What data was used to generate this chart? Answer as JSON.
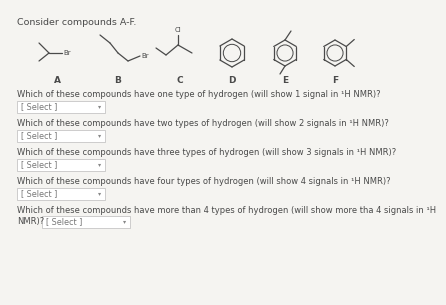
{
  "title": "Consider compounds A-F.",
  "bg_color": "#f5f4f1",
  "text_color": "#4a4a4a",
  "struct_color": "#4a4a4a",
  "title_fontsize": 6.8,
  "label_fontsize": 6.5,
  "question_fontsize": 6.0,
  "select_fontsize": 5.8,
  "questions": [
    "Which of these compounds have one type of hydrogen (will show 1 signal in ¹H NMR)?",
    "Which of these compounds have two types of hydrogen (will show 2 signals in ¹H NMR)?",
    "Which of these compounds have three types of hydrogen (will show 3 signals in ¹H NMR)?",
    "Which of these compounds have four types of hydrogen (will show 4 signals in ¹H NMR)?",
    "Which of these compounds have more than 4 types of hydrogen (will show more tha 4 signals in ¹H",
    "NMR)?"
  ],
  "labels": [
    "A",
    "B",
    "C",
    "D",
    "E",
    "F"
  ],
  "select_text": "[ Select ]",
  "lw": 0.9
}
